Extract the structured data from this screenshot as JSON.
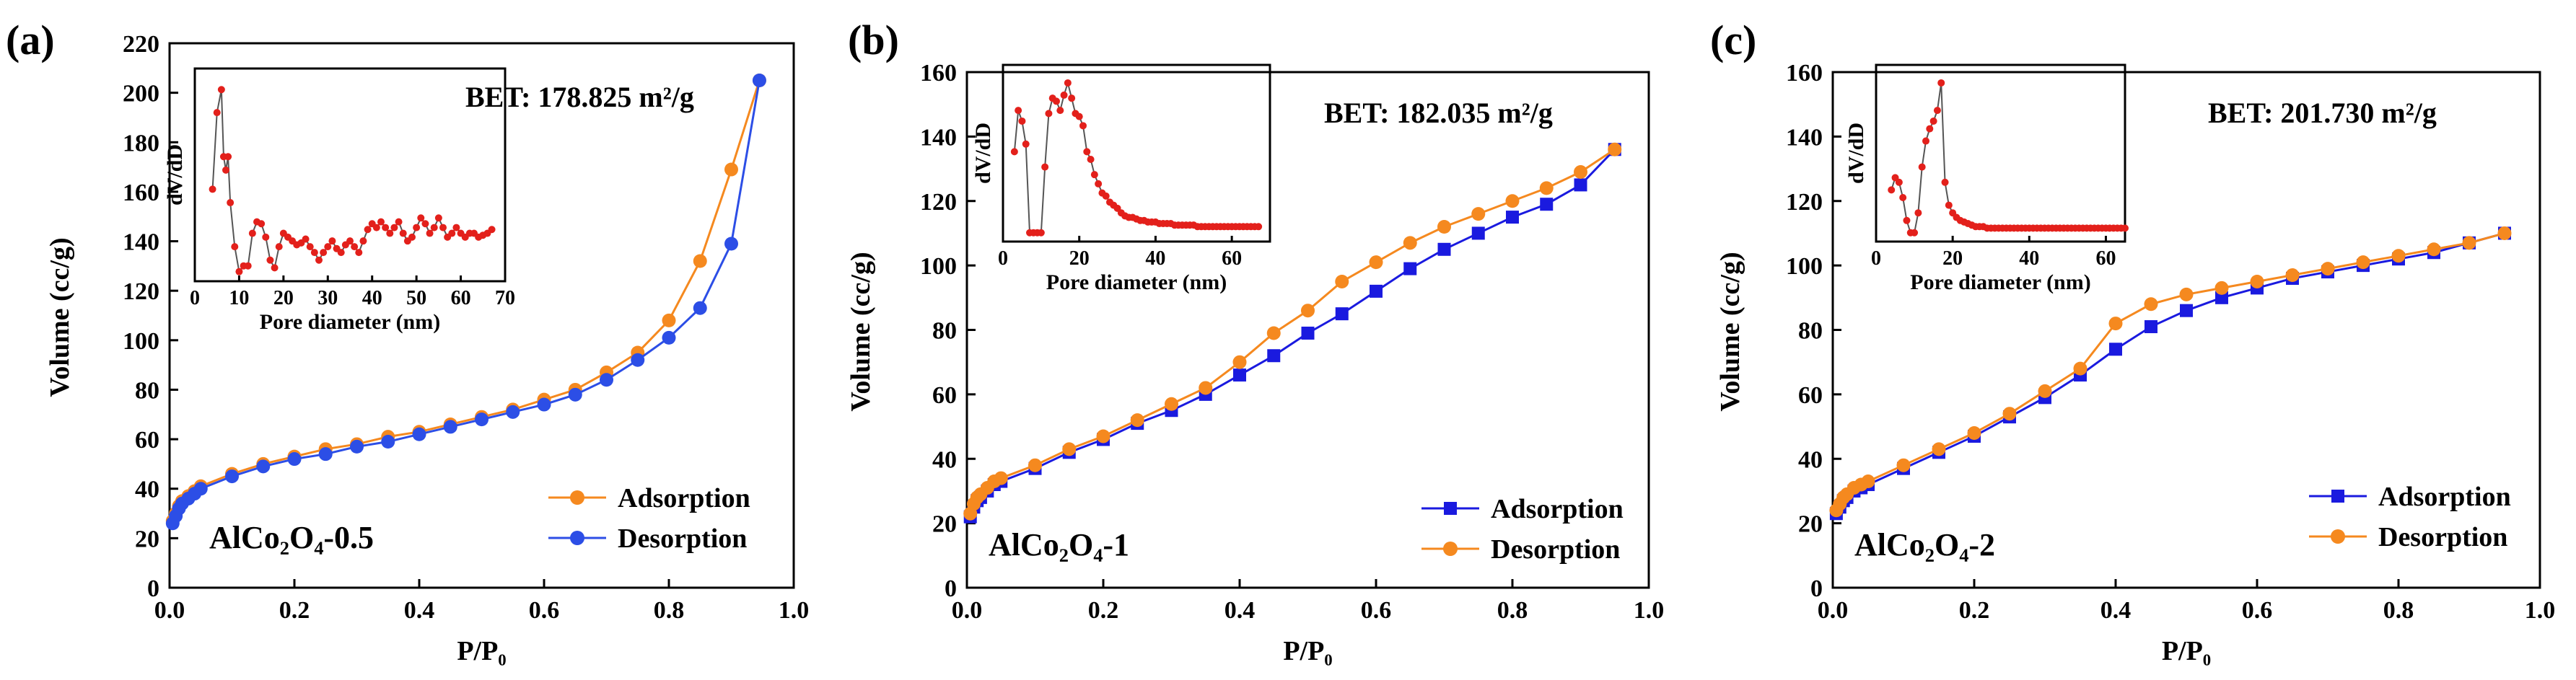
{
  "colors": {
    "adsorption_orange": "#f5891f",
    "desorption_blue": "#2c4ee6",
    "blue_square": "#1a1adf",
    "inset_red": "#e3201b",
    "inset_line": "#555555"
  },
  "chart_data": [
    {
      "type": "line",
      "panel_label": "(a)",
      "bet": "BET: 178.825 m²/g",
      "sample": "AlCo₂O₄-0.5",
      "xlabel": "P/P₀",
      "ylabel": "Volume  (cc/g)",
      "xlim": [
        0,
        1.0
      ],
      "ylim": [
        0,
        220
      ],
      "xticks": [
        "0.0",
        "0.2",
        "0.4",
        "0.6",
        "0.8",
        "1.0"
      ],
      "yticks": [
        "0",
        "20",
        "40",
        "60",
        "80",
        "100",
        "120",
        "140",
        "160",
        "180",
        "200",
        "220"
      ],
      "series": [
        {
          "name": "Adsorption",
          "marker": "circle",
          "color": "#f5891f",
          "x": [
            0.005,
            0.01,
            0.015,
            0.02,
            0.03,
            0.04,
            0.05,
            0.1,
            0.15,
            0.2,
            0.25,
            0.3,
            0.35,
            0.4,
            0.45,
            0.5,
            0.55,
            0.6,
            0.65,
            0.7,
            0.75,
            0.8,
            0.85,
            0.9,
            0.945
          ],
          "y": [
            27,
            30,
            33,
            35,
            37,
            39,
            41,
            46,
            50,
            53,
            56,
            58,
            61,
            63,
            66,
            69,
            72,
            76,
            80,
            87,
            95,
            108,
            132,
            169,
            205
          ]
        },
        {
          "name": "Desorption",
          "marker": "circle",
          "color": "#2c4ee6",
          "x": [
            0.005,
            0.01,
            0.015,
            0.02,
            0.03,
            0.04,
            0.05,
            0.1,
            0.15,
            0.2,
            0.25,
            0.3,
            0.35,
            0.4,
            0.45,
            0.5,
            0.55,
            0.6,
            0.65,
            0.7,
            0.75,
            0.8,
            0.85,
            0.9,
            0.945
          ],
          "y": [
            26,
            29,
            32,
            34,
            36,
            38,
            40,
            45,
            49,
            52,
            54,
            57,
            59,
            62,
            65,
            68,
            71,
            74,
            78,
            84,
            92,
            101,
            113,
            139,
            205
          ]
        }
      ],
      "legend_order": [
        "Adsorption",
        "Desorption"
      ],
      "inset": {
        "xlabel": "Pore diameter  (nm)",
        "ylabel": "dV/dD",
        "xlim": [
          0,
          70
        ],
        "xticks": [
          "0",
          "10",
          "20",
          "30",
          "40",
          "50",
          "60",
          "70"
        ],
        "x": [
          4,
          5,
          6,
          6.5,
          7,
          7.5,
          8,
          9,
          10,
          11,
          12,
          13,
          14,
          15,
          16,
          17,
          18,
          19,
          20,
          21,
          22,
          23,
          24,
          25,
          26,
          27,
          28,
          29,
          30,
          31,
          32,
          33,
          34,
          35,
          36,
          37,
          38,
          39,
          40,
          41,
          42,
          43,
          44,
          45,
          46,
          47,
          48,
          49,
          50,
          51,
          52,
          53,
          54,
          55,
          56,
          57,
          58,
          59,
          60,
          61,
          62,
          63,
          64,
          65,
          66,
          67
        ],
        "y": [
          0.45,
          0.85,
          0.97,
          0.62,
          0.55,
          0.62,
          0.38,
          0.15,
          0.02,
          0.05,
          0.05,
          0.22,
          0.28,
          0.27,
          0.2,
          0.08,
          0.04,
          0.15,
          0.22,
          0.2,
          0.18,
          0.16,
          0.17,
          0.19,
          0.15,
          0.12,
          0.08,
          0.12,
          0.15,
          0.18,
          0.14,
          0.12,
          0.16,
          0.18,
          0.15,
          0.12,
          0.18,
          0.24,
          0.27,
          0.25,
          0.28,
          0.25,
          0.22,
          0.25,
          0.28,
          0.22,
          0.18,
          0.2,
          0.25,
          0.3,
          0.27,
          0.22,
          0.25,
          0.3,
          0.25,
          0.2,
          0.22,
          0.25,
          0.22,
          0.2,
          0.22,
          0.22,
          0.2,
          0.21,
          0.22,
          0.24
        ]
      }
    },
    {
      "type": "line",
      "panel_label": "(b)",
      "bet": "BET: 182.035 m²/g",
      "sample": "AlCo₂O₄-1",
      "xlabel": "P/P₀",
      "ylabel": "Volume  (cc/g)",
      "xlim": [
        0,
        1.0
      ],
      "ylim": [
        0,
        160
      ],
      "xticks": [
        "0.0",
        "0.2",
        "0.4",
        "0.6",
        "0.8",
        "1.0"
      ],
      "yticks": [
        "0",
        "20",
        "40",
        "60",
        "80",
        "100",
        "120",
        "140",
        "160"
      ],
      "series": [
        {
          "name": "Adsorption",
          "marker": "square",
          "color": "#1a1adf",
          "x": [
            0.005,
            0.01,
            0.015,
            0.02,
            0.03,
            0.04,
            0.05,
            0.1,
            0.15,
            0.2,
            0.25,
            0.3,
            0.35,
            0.4,
            0.45,
            0.5,
            0.55,
            0.6,
            0.65,
            0.7,
            0.75,
            0.8,
            0.85,
            0.9,
            0.95
          ],
          "y": [
            22,
            25,
            27,
            28,
            30,
            32,
            33,
            37,
            42,
            46,
            51,
            55,
            60,
            66,
            72,
            79,
            85,
            92,
            99,
            105,
            110,
            115,
            119,
            125,
            136
          ]
        },
        {
          "name": "Desorption",
          "marker": "circle",
          "color": "#f5891f",
          "x": [
            0.005,
            0.01,
            0.015,
            0.02,
            0.03,
            0.04,
            0.05,
            0.1,
            0.15,
            0.2,
            0.25,
            0.3,
            0.35,
            0.4,
            0.45,
            0.5,
            0.55,
            0.6,
            0.65,
            0.7,
            0.75,
            0.8,
            0.85,
            0.9,
            0.95
          ],
          "y": [
            23,
            26,
            28,
            29,
            31,
            33,
            34,
            38,
            43,
            47,
            52,
            57,
            62,
            70,
            79,
            86,
            95,
            101,
            107,
            112,
            116,
            120,
            124,
            129,
            136
          ]
        }
      ],
      "legend_order": [
        "Adsorption",
        "Desorption"
      ],
      "inset": {
        "xlabel": "Pore diameter  (nm)",
        "ylabel": "dV/dD",
        "xlim": [
          0,
          70
        ],
        "xticks": [
          "0",
          "20",
          "40",
          "60"
        ],
        "x": [
          3,
          4,
          5,
          6,
          7,
          8,
          9,
          10,
          11,
          12,
          13,
          14,
          15,
          16,
          17,
          18,
          19,
          20,
          21,
          22,
          23,
          24,
          25,
          26,
          27,
          28,
          29,
          30,
          31,
          32,
          33,
          34,
          35,
          36,
          37,
          38,
          39,
          40,
          41,
          42,
          43,
          44,
          45,
          46,
          47,
          48,
          49,
          50,
          51,
          52,
          53,
          54,
          55,
          56,
          57,
          58,
          59,
          60,
          61,
          62,
          63,
          64,
          65,
          66,
          67
        ],
        "y": [
          0.55,
          0.82,
          0.75,
          0.6,
          0.02,
          0.02,
          0.02,
          0.02,
          0.45,
          0.8,
          0.9,
          0.88,
          0.82,
          0.92,
          1.0,
          0.9,
          0.8,
          0.78,
          0.72,
          0.55,
          0.5,
          0.4,
          0.34,
          0.28,
          0.26,
          0.22,
          0.2,
          0.18,
          0.15,
          0.13,
          0.12,
          0.12,
          0.11,
          0.1,
          0.1,
          0.09,
          0.09,
          0.09,
          0.08,
          0.08,
          0.08,
          0.08,
          0.07,
          0.07,
          0.07,
          0.07,
          0.07,
          0.07,
          0.06,
          0.06,
          0.06,
          0.06,
          0.06,
          0.06,
          0.06,
          0.06,
          0.06,
          0.06,
          0.06,
          0.06,
          0.06,
          0.06,
          0.06,
          0.06,
          0.06
        ]
      }
    },
    {
      "type": "line",
      "panel_label": "(c)",
      "bet": "BET: 201.730 m²/g",
      "sample": "AlCo₂O₄-2",
      "xlabel": "P/P₀",
      "ylabel": "Volume  (cc/g)",
      "xlim": [
        0,
        1.0
      ],
      "ylim": [
        0,
        160
      ],
      "xticks": [
        "0.0",
        "0.2",
        "0.4",
        "0.6",
        "0.8",
        "1.0"
      ],
      "yticks": [
        "0",
        "20",
        "40",
        "60",
        "80",
        "100",
        "120",
        "140",
        "160"
      ],
      "series": [
        {
          "name": "Adsorption",
          "marker": "square",
          "color": "#1a1adf",
          "x": [
            0.005,
            0.01,
            0.015,
            0.02,
            0.03,
            0.04,
            0.05,
            0.1,
            0.15,
            0.2,
            0.25,
            0.3,
            0.35,
            0.4,
            0.45,
            0.5,
            0.55,
            0.6,
            0.65,
            0.7,
            0.75,
            0.8,
            0.85,
            0.9,
            0.95
          ],
          "y": [
            23,
            25,
            27,
            28,
            30,
            31,
            32,
            37,
            42,
            47,
            53,
            59,
            66,
            74,
            81,
            86,
            90,
            93,
            96,
            98,
            100,
            102,
            104,
            107,
            110
          ]
        },
        {
          "name": "Desorption",
          "marker": "circle",
          "color": "#f5891f",
          "x": [
            0.005,
            0.01,
            0.015,
            0.02,
            0.03,
            0.04,
            0.05,
            0.1,
            0.15,
            0.2,
            0.25,
            0.3,
            0.35,
            0.4,
            0.45,
            0.5,
            0.55,
            0.6,
            0.65,
            0.7,
            0.75,
            0.8,
            0.85,
            0.9,
            0.95
          ],
          "y": [
            24,
            26,
            28,
            29,
            31,
            32,
            33,
            38,
            43,
            48,
            54,
            61,
            68,
            82,
            88,
            91,
            93,
            95,
            97,
            99,
            101,
            103,
            105,
            107,
            110
          ]
        }
      ],
      "legend_order": [
        "Adsorption",
        "Desorption"
      ],
      "inset": {
        "xlabel": "Pore diameter  (nm)",
        "ylabel": "dV/dD",
        "xlim": [
          0,
          65
        ],
        "xticks": [
          "0",
          "20",
          "40",
          "60"
        ],
        "x": [
          4,
          5,
          6,
          7,
          8,
          9,
          10,
          11,
          12,
          13,
          14,
          15,
          16,
          17,
          18,
          19,
          20,
          21,
          22,
          23,
          24,
          25,
          26,
          27,
          28,
          29,
          30,
          31,
          32,
          33,
          34,
          35,
          36,
          37,
          38,
          39,
          40,
          41,
          42,
          43,
          44,
          45,
          46,
          47,
          48,
          49,
          50,
          51,
          52,
          53,
          54,
          55,
          56,
          57,
          58,
          59,
          60,
          61,
          62,
          63,
          64,
          65
        ],
        "y": [
          0.3,
          0.38,
          0.35,
          0.25,
          0.1,
          0.02,
          0.02,
          0.15,
          0.45,
          0.62,
          0.7,
          0.75,
          0.82,
          1.0,
          0.35,
          0.2,
          0.15,
          0.12,
          0.1,
          0.09,
          0.08,
          0.07,
          0.06,
          0.06,
          0.06,
          0.05,
          0.05,
          0.05,
          0.05,
          0.05,
          0.05,
          0.05,
          0.05,
          0.05,
          0.05,
          0.05,
          0.05,
          0.05,
          0.05,
          0.05,
          0.05,
          0.05,
          0.05,
          0.05,
          0.05,
          0.05,
          0.05,
          0.05,
          0.05,
          0.05,
          0.05,
          0.05,
          0.05,
          0.05,
          0.05,
          0.05,
          0.05,
          0.05,
          0.05,
          0.05,
          0.05,
          0.05
        ]
      }
    }
  ]
}
